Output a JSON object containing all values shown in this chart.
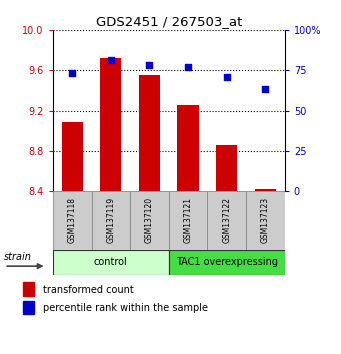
{
  "title": "GDS2451 / 267503_at",
  "samples": [
    "GSM137118",
    "GSM137119",
    "GSM137120",
    "GSM137121",
    "GSM137122",
    "GSM137123"
  ],
  "bar_values": [
    9.09,
    9.72,
    9.55,
    9.26,
    8.86,
    8.42
  ],
  "bar_color": "#cc0000",
  "scatter_values": [
    73.5,
    81.5,
    78.5,
    77.0,
    71.0,
    63.5
  ],
  "scatter_color": "#0000cc",
  "ymin": 8.4,
  "ymax": 10.0,
  "yticks": [
    8.4,
    8.8,
    9.2,
    9.6,
    10.0
  ],
  "y2min": 0,
  "y2max": 100,
  "y2ticks": [
    0,
    25,
    50,
    75,
    100
  ],
  "y2ticklabels": [
    "0",
    "25",
    "50",
    "75",
    "100%"
  ],
  "groups": [
    {
      "label": "control",
      "start": 0,
      "end": 2,
      "color": "#ccffcc"
    },
    {
      "label": "TAC1 overexpressing",
      "start": 3,
      "end": 5,
      "color": "#44dd44"
    }
  ],
  "legend_bar_label": "transformed count",
  "legend_scatter_label": "percentile rank within the sample",
  "strain_label": "strain",
  "tick_label_color_left": "#cc0000",
  "tick_label_color_right": "#0000cc",
  "sample_box_color": "#cccccc",
  "sample_box_edge": "#888888"
}
